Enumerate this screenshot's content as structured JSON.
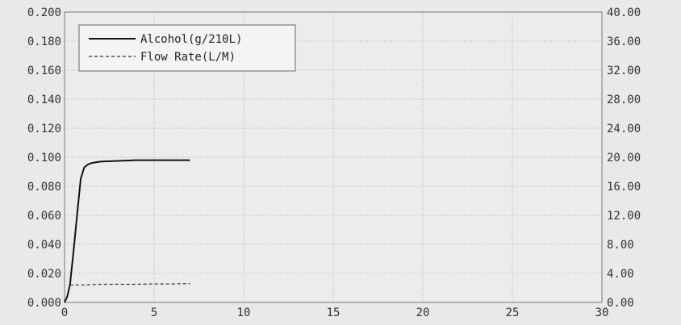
{
  "chart_data": {
    "type": "line",
    "title": "",
    "xlabel": "",
    "ylabel": "",
    "y2label": "",
    "xlim": [
      0,
      30
    ],
    "ylim": [
      0,
      0.2
    ],
    "y2lim": [
      0,
      40
    ],
    "grid": true,
    "legend_position": "top-left",
    "x_ticks": [
      "0",
      "5",
      "10",
      "15",
      "20",
      "25",
      "30"
    ],
    "x_tick_values": [
      0,
      5,
      10,
      15,
      20,
      25,
      30
    ],
    "y_ticks": [
      "0.000",
      "0.020",
      "0.040",
      "0.060",
      "0.080",
      "0.100",
      "0.120",
      "0.140",
      "0.160",
      "0.180",
      "0.200"
    ],
    "y_tick_values": [
      0,
      0.02,
      0.04,
      0.06,
      0.08,
      0.1,
      0.12,
      0.14,
      0.16,
      0.18,
      0.2
    ],
    "y2_ticks": [
      "0.00",
      "4.00",
      "8.00",
      "12.00",
      "16.00",
      "20.00",
      "24.00",
      "28.00",
      "32.00",
      "36.00",
      "40.00"
    ],
    "y2_tick_values": [
      0,
      4,
      8,
      12,
      16,
      20,
      24,
      28,
      32,
      36,
      40
    ],
    "series": [
      {
        "name": "Alcohol(g/210L)",
        "axis": "left",
        "style": "solid",
        "color": "#111111",
        "x": [
          0,
          0.15,
          0.3,
          0.5,
          0.7,
          0.9,
          1.1,
          1.3,
          1.5,
          2,
          3,
          4,
          5,
          6,
          7
        ],
        "y": [
          0,
          0.004,
          0.012,
          0.035,
          0.06,
          0.085,
          0.093,
          0.095,
          0.096,
          0.097,
          0.0975,
          0.098,
          0.098,
          0.098,
          0.098
        ]
      },
      {
        "name": "Flow Rate(L/M)",
        "axis": "right",
        "style": "dashed",
        "color": "#333333",
        "x": [
          0.3,
          1,
          2,
          3,
          4,
          5,
          6,
          7
        ],
        "y": [
          2.4,
          2.4,
          2.5,
          2.5,
          2.5,
          2.55,
          2.55,
          2.6
        ]
      }
    ]
  }
}
